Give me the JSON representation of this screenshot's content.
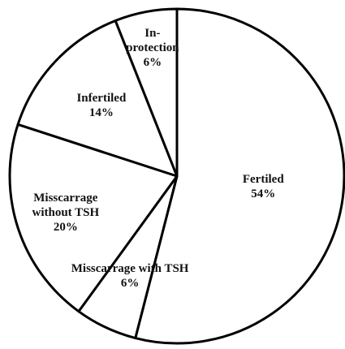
{
  "chart_data": {
    "type": "pie",
    "categories": [
      "Fertiled",
      "Misscarrage with TSH",
      "Misscarrage without TSH",
      "Infertiled",
      "In-protection"
    ],
    "values": [
      54,
      6,
      20,
      14,
      6
    ],
    "value_labels": [
      "54%",
      "6%",
      "20%",
      "14%",
      "6%"
    ],
    "color": "#ffffff"
  }
}
